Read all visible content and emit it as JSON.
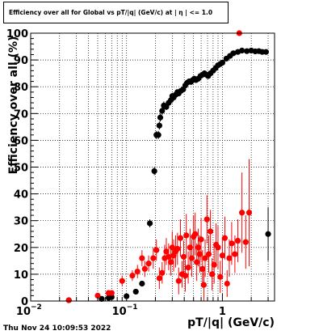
{
  "title": "Efficiency over all for Global vs pT/|q| (GeV/c) at | η | <= 1.0",
  "timestamp": "Thu Nov 24 10:09:53 2022",
  "chart_data": {
    "type": "scatter",
    "title": "Efficiency over all for Global vs pT/|q| (GeV/c) at | η | <= 1.0",
    "xlabel": "pT/|q| (GeV/c)",
    "ylabel": "Efficiency over all (%)",
    "xscale": "log",
    "xlim": [
      0.01,
      3.5
    ],
    "ylim": [
      0,
      100
    ],
    "grid": true,
    "x_ticks": [
      {
        "value": 0.01,
        "label": "10",
        "sup": "−2"
      },
      {
        "value": 0.1,
        "label": "10",
        "sup": "−1"
      },
      {
        "value": 1,
        "label": "1",
        "sup": ""
      }
    ],
    "y_ticks": [
      0,
      10,
      20,
      30,
      40,
      50,
      60,
      70,
      80,
      90,
      100
    ],
    "series": [
      {
        "color": "#000000",
        "points": [
          [
            0.025,
            0.3,
            0
          ],
          [
            0.055,
            0.8,
            0
          ],
          [
            0.065,
            1.2,
            0
          ],
          [
            0.07,
            1.5,
            0
          ],
          [
            0.1,
            1.8,
            0.5
          ],
          [
            0.125,
            3.5,
            0.8
          ],
          [
            0.145,
            6.5,
            1
          ],
          [
            0.175,
            29,
            1.5
          ],
          [
            0.195,
            48.5,
            1.5
          ],
          [
            0.205,
            62,
            1.5
          ],
          [
            0.215,
            62,
            1.5
          ],
          [
            0.22,
            65.5,
            1.5
          ],
          [
            0.225,
            68.5,
            1.5
          ],
          [
            0.235,
            71,
            1.5
          ],
          [
            0.245,
            73,
            1.5
          ],
          [
            0.26,
            72.5,
            1.2
          ],
          [
            0.275,
            74,
            1.2
          ],
          [
            0.29,
            75,
            1.2
          ],
          [
            0.3,
            76.5,
            1.2
          ],
          [
            0.31,
            76,
            1.2
          ],
          [
            0.325,
            77,
            1.2
          ],
          [
            0.34,
            78,
            1
          ],
          [
            0.35,
            77.5,
            1
          ],
          [
            0.37,
            78.5,
            1
          ],
          [
            0.39,
            79,
            1
          ],
          [
            0.41,
            80.5,
            1
          ],
          [
            0.43,
            81.5,
            1
          ],
          [
            0.45,
            82,
            1
          ],
          [
            0.47,
            81.8,
            1
          ],
          [
            0.49,
            82.5,
            1
          ],
          [
            0.51,
            83,
            1
          ],
          [
            0.53,
            82.5,
            1
          ],
          [
            0.56,
            83,
            1
          ],
          [
            0.59,
            84,
            1
          ],
          [
            0.62,
            84.5,
            1
          ],
          [
            0.65,
            85,
            1
          ],
          [
            0.68,
            84.5,
            1
          ],
          [
            0.71,
            84,
            1
          ],
          [
            0.75,
            85,
            1
          ],
          [
            0.8,
            86,
            1
          ],
          [
            0.85,
            87,
            1
          ],
          [
            0.9,
            88,
            1
          ],
          [
            0.95,
            88.5,
            1
          ],
          [
            1.0,
            89,
            1
          ],
          [
            1.1,
            90.5,
            1
          ],
          [
            1.2,
            91.5,
            1
          ],
          [
            1.3,
            92.5,
            1
          ],
          [
            1.45,
            93,
            1
          ],
          [
            1.6,
            93.5,
            1
          ],
          [
            1.8,
            93.3,
            1
          ],
          [
            2.0,
            93.5,
            1
          ],
          [
            2.2,
            93.2,
            1
          ],
          [
            2.4,
            93.3,
            1
          ],
          [
            2.6,
            93,
            1
          ],
          [
            2.85,
            93,
            1
          ],
          [
            3.0,
            25,
            10
          ]
        ]
      },
      {
        "color": "#ff0000",
        "points": [
          [
            0.025,
            0.3,
            0
          ],
          [
            0.05,
            2.0,
            1
          ],
          [
            0.065,
            3.0,
            1
          ],
          [
            0.07,
            3.0,
            1
          ],
          [
            0.09,
            7.5,
            2
          ],
          [
            0.115,
            9.5,
            2
          ],
          [
            0.13,
            11,
            2.5
          ],
          [
            0.145,
            16,
            3
          ],
          [
            0.155,
            12,
            3
          ],
          [
            0.17,
            14,
            3
          ],
          [
            0.19,
            16,
            4
          ],
          [
            0.205,
            19,
            4
          ],
          [
            0.22,
            8.5,
            4
          ],
          [
            0.235,
            10.5,
            4
          ],
          [
            0.25,
            16,
            5
          ],
          [
            0.26,
            18.5,
            5
          ],
          [
            0.275,
            16.5,
            5
          ],
          [
            0.29,
            14.5,
            5
          ],
          [
            0.3,
            20,
            6
          ],
          [
            0.31,
            17,
            6
          ],
          [
            0.325,
            18.5,
            6
          ],
          [
            0.34,
            19.5,
            6
          ],
          [
            0.35,
            7.5,
            5
          ],
          [
            0.365,
            23.5,
            7
          ],
          [
            0.38,
            10,
            5
          ],
          [
            0.395,
            16.5,
            6
          ],
          [
            0.41,
            9.5,
            6
          ],
          [
            0.42,
            24.5,
            8
          ],
          [
            0.44,
            12.5,
            6
          ],
          [
            0.46,
            20,
            7
          ],
          [
            0.48,
            16,
            7
          ],
          [
            0.5,
            24,
            8
          ],
          [
            0.52,
            25,
            8
          ],
          [
            0.54,
            14.5,
            7
          ],
          [
            0.56,
            20,
            7
          ],
          [
            0.58,
            17.5,
            7
          ],
          [
            0.6,
            23,
            8
          ],
          [
            0.62,
            12,
            7
          ],
          [
            0.64,
            6,
            6
          ],
          [
            0.66,
            16,
            7
          ],
          [
            0.69,
            30.5,
            9
          ],
          [
            0.72,
            17.5,
            7
          ],
          [
            0.75,
            26,
            8
          ],
          [
            0.78,
            10,
            6
          ],
          [
            0.82,
            13.5,
            7
          ],
          [
            0.86,
            21,
            8
          ],
          [
            0.9,
            20,
            8
          ],
          [
            0.95,
            9,
            6
          ],
          [
            1.0,
            17,
            7
          ],
          [
            1.06,
            23.5,
            8
          ],
          [
            1.12,
            6.5,
            5
          ],
          [
            1.18,
            16,
            7
          ],
          [
            1.25,
            21.5,
            8
          ],
          [
            1.35,
            17.5,
            7
          ],
          [
            1.45,
            22.5,
            8
          ],
          [
            1.5,
            100,
            0
          ],
          [
            1.6,
            33,
            15
          ],
          [
            1.75,
            22,
            10
          ],
          [
            1.9,
            33,
            20
          ]
        ]
      }
    ]
  }
}
